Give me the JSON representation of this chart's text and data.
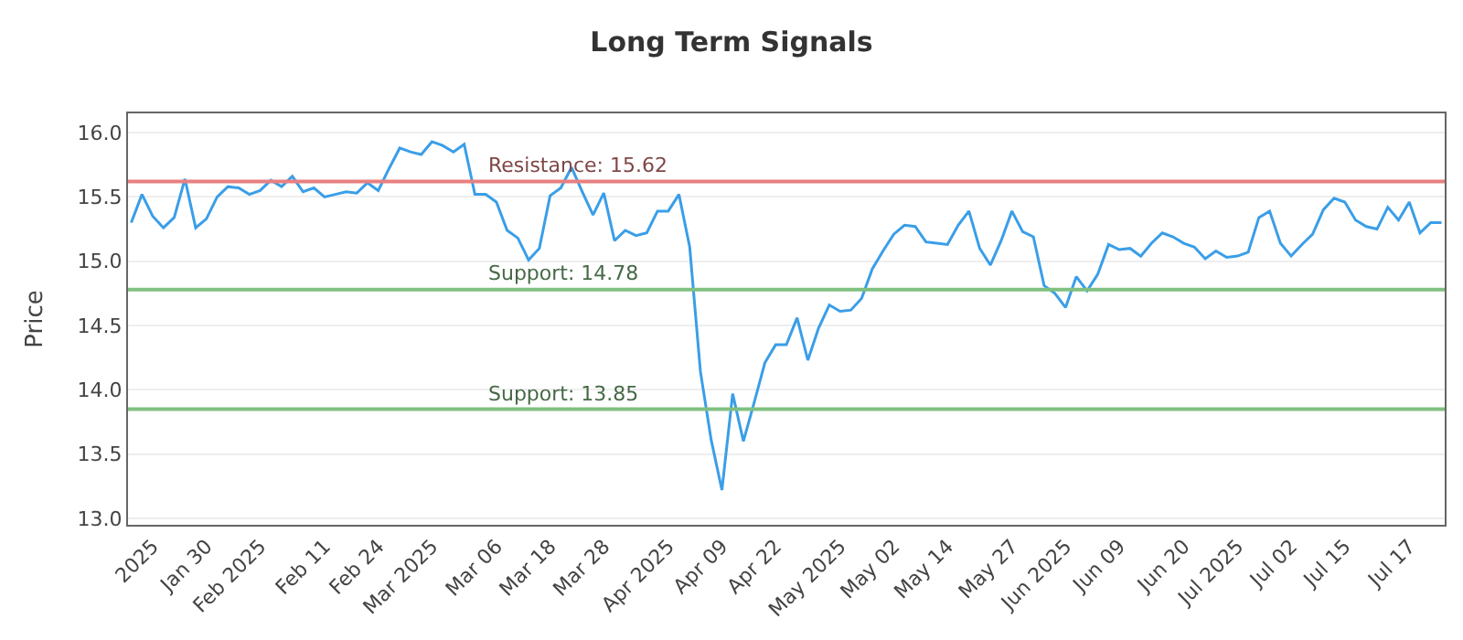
{
  "chart_data": {
    "type": "line",
    "title": "Long Term Signals",
    "ylabel": "Price",
    "categories": [
      null,
      null,
      "2025",
      null,
      null,
      null,
      null,
      "Jan 30",
      null,
      null,
      null,
      null,
      "Feb 2025",
      null,
      null,
      null,
      null,
      null,
      "Feb 11",
      null,
      null,
      null,
      null,
      "Feb 24",
      null,
      null,
      null,
      null,
      "Mar 2025",
      null,
      null,
      null,
      null,
      null,
      "Mar 06",
      null,
      null,
      null,
      null,
      "Mar 18",
      null,
      null,
      null,
      null,
      "Mar 28",
      null,
      null,
      null,
      null,
      null,
      "Apr 2025",
      null,
      null,
      null,
      null,
      "Apr 09",
      null,
      null,
      null,
      null,
      "Apr 22",
      null,
      null,
      null,
      null,
      null,
      "May 2025",
      null,
      null,
      null,
      null,
      "May 02",
      null,
      null,
      null,
      null,
      "May 14",
      null,
      null,
      null,
      null,
      null,
      "May 27",
      null,
      null,
      null,
      null,
      "Jun 2025",
      null,
      null,
      null,
      null,
      "Jun 09",
      null,
      null,
      null,
      null,
      null,
      "Jun 20",
      null,
      null,
      null,
      null,
      "Jul 2025",
      null,
      null,
      null,
      null,
      "Jul 02",
      null,
      null,
      null,
      null,
      "Jul 15",
      null,
      null,
      null,
      null,
      null,
      "Jul 17",
      null,
      null,
      null
    ],
    "series": [
      {
        "color": "#3a9ee8",
        "values": [
          15.3,
          15.52,
          15.35,
          15.26,
          15.34,
          15.64,
          15.26,
          15.33,
          15.5,
          15.58,
          15.57,
          15.52,
          15.55,
          15.63,
          15.58,
          15.66,
          15.54,
          15.57,
          15.5,
          15.52,
          15.54,
          15.53,
          15.61,
          15.55,
          15.72,
          15.88,
          15.85,
          15.83,
          15.93,
          15.9,
          15.85,
          15.91,
          15.52,
          15.52,
          15.46,
          15.24,
          15.18,
          15.01,
          15.1,
          15.51,
          15.57,
          15.73,
          15.54,
          15.36,
          15.53,
          15.16,
          15.24,
          15.2,
          15.22,
          15.39,
          15.39,
          15.52,
          15.11,
          14.14,
          13.61,
          13.22,
          13.97,
          13.6,
          13.9,
          14.21,
          14.35,
          14.35,
          14.56,
          14.23,
          14.48,
          14.66,
          14.61,
          14.62,
          14.71,
          14.94,
          15.08,
          15.21,
          15.28,
          15.27,
          15.15,
          15.14,
          15.13,
          15.28,
          15.39,
          15.1,
          14.97,
          15.16,
          15.39,
          15.23,
          15.19,
          14.81,
          14.75,
          14.64,
          14.88,
          14.77,
          14.9,
          15.13,
          15.09,
          15.1,
          15.04,
          15.14,
          15.22,
          15.19,
          15.14,
          15.11,
          15.02,
          15.08,
          15.03,
          15.04,
          15.07,
          15.34,
          15.39,
          15.14,
          15.04,
          15.13,
          15.21,
          15.4,
          15.49,
          15.46,
          15.32,
          15.27,
          15.25,
          15.42,
          15.32,
          15.46,
          15.22,
          15.3,
          15.3
        ]
      }
    ],
    "ylim": [
      12.95,
      16.15
    ],
    "yticks": [
      {
        "value": 13,
        "label": "13.0"
      },
      {
        "value": 13.5,
        "label": "13.5"
      },
      {
        "value": 14,
        "label": "14.0"
      },
      {
        "value": 14.5,
        "label": "14.5"
      },
      {
        "value": 15,
        "label": "15.0"
      },
      {
        "value": 15.5,
        "label": "15.5"
      },
      {
        "value": 16,
        "label": "16.0"
      }
    ],
    "grid": "y",
    "marker": "none",
    "line_style": "solid",
    "ref_lines": [
      {
        "axis": "y",
        "value": 15.62,
        "label": "Resistance: 15.62",
        "color": "#e88080"
      },
      {
        "axis": "y",
        "value": 14.78,
        "label": "Support: 14.78",
        "color": "#80c080"
      },
      {
        "axis": "y",
        "value": 13.85,
        "label": "Support: 13.85",
        "color": "#80c080"
      }
    ]
  }
}
